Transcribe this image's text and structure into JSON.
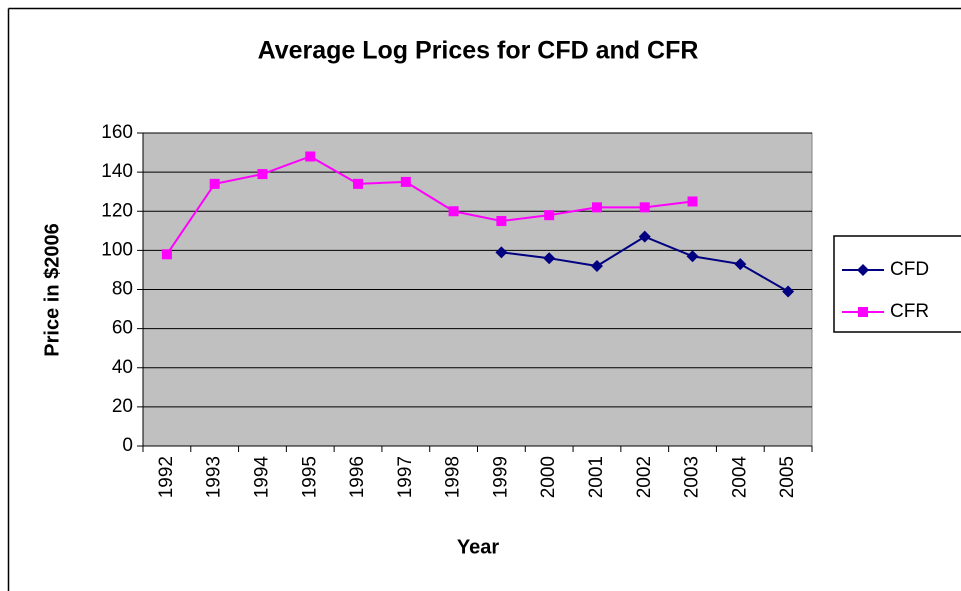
{
  "chart_data": {
    "type": "line",
    "title": "Average Log Prices for CFD and CFR",
    "x_label": "Year",
    "y_label": "Price in $2006",
    "categories": [
      "1992",
      "1993",
      "1994",
      "1995",
      "1996",
      "1997",
      "1998",
      "1999",
      "2000",
      "2001",
      "2002",
      "2003",
      "2004",
      "2005"
    ],
    "series": [
      {
        "name": "CFD",
        "color": "#000080",
        "marker": "diamond",
        "values": [
          null,
          null,
          null,
          null,
          null,
          null,
          null,
          99,
          96,
          92,
          107,
          97,
          93,
          79
        ]
      },
      {
        "name": "CFR",
        "color": "#ff00ff",
        "marker": "square",
        "values": [
          98,
          134,
          139,
          148,
          134,
          135,
          120,
          115,
          118,
          122,
          122,
          125,
          null,
          null
        ]
      }
    ],
    "ylim": [
      0,
      160
    ],
    "yticks": [
      0,
      20,
      40,
      60,
      80,
      100,
      120,
      140,
      160
    ],
    "grid": true,
    "plot_background": "#c0c0c0",
    "legend": "right"
  }
}
